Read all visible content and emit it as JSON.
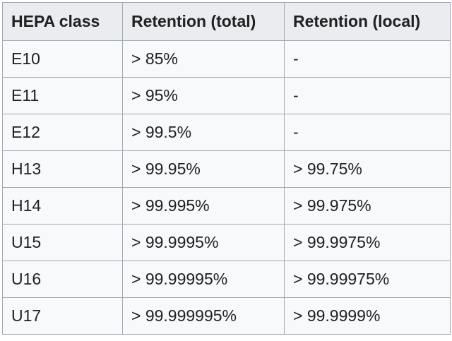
{
  "table": {
    "headers": [
      "HEPA class",
      "Retention (total)",
      "Retention (local)"
    ],
    "rows": [
      [
        "E10",
        "> 85%",
        "-"
      ],
      [
        "E11",
        "> 95%",
        "-"
      ],
      [
        "E12",
        "> 99.5%",
        "-"
      ],
      [
        "H13",
        "> 99.95%",
        "> 99.75%"
      ],
      [
        "H14",
        "> 99.995%",
        "> 99.975%"
      ],
      [
        "U15",
        "> 99.9995%",
        "> 99.9975%"
      ],
      [
        "U16",
        "> 99.99995%",
        "> 99.99975%"
      ],
      [
        "U17",
        "> 99.999995%",
        "> 99.9999%"
      ]
    ]
  }
}
